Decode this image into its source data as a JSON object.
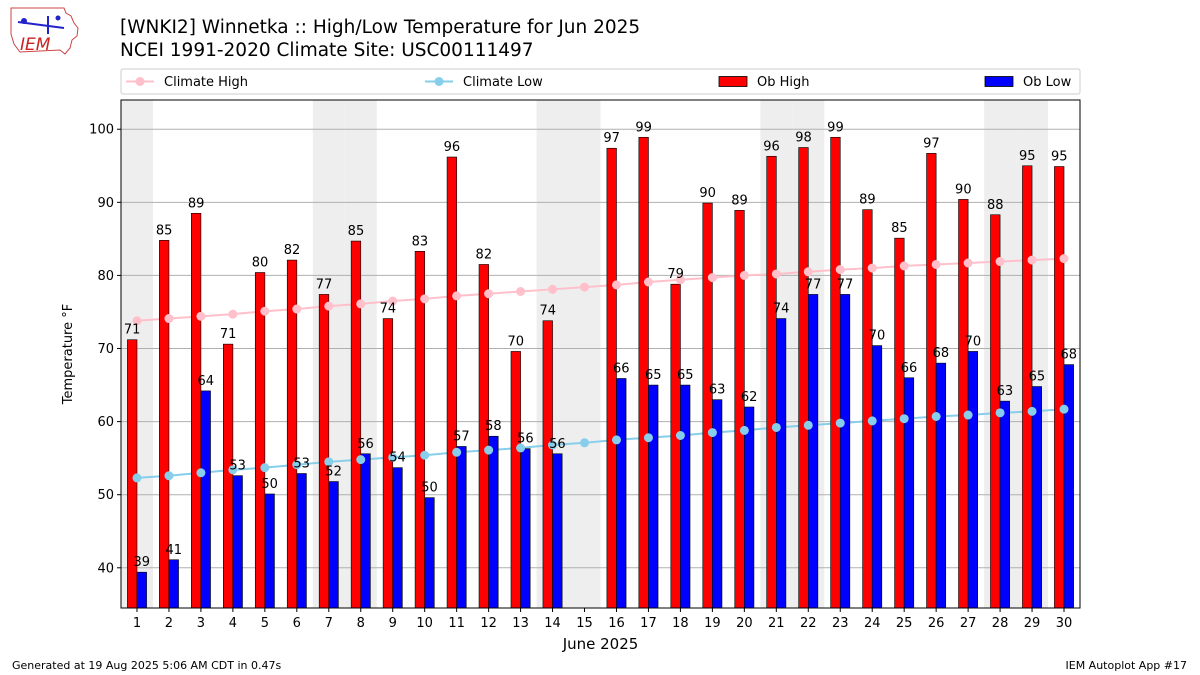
{
  "header": {
    "title_line1": "[WNKI2] Winnetka :: High/Low Temperature for Jun 2025",
    "title_line2": "NCEI 1991-2020 Climate Site: USC00111497",
    "logo_text": "IEM"
  },
  "footer": {
    "generated": "Generated at 19 Aug 2025 5:06 AM CDT in 0.47s",
    "app": "IEM Autoplot App #17"
  },
  "colors": {
    "ob_high": "#ff0000",
    "ob_low": "#0000ff",
    "climate_high": "#ffc0cb",
    "climate_low": "#87ceeb",
    "weekend_shade": "#eeeeee",
    "grid": "#b0b0b0"
  },
  "chart_data": {
    "type": "bar",
    "xlabel": "June 2025",
    "ylabel": "Temperature °F",
    "ylim": [
      34.5,
      104
    ],
    "yticks": [
      40,
      50,
      60,
      70,
      80,
      90,
      100
    ],
    "grid": "horizontal",
    "legend_placement": "top",
    "legend": [
      "Climate High",
      "Climate Low",
      "Ob High",
      "Ob Low"
    ],
    "categories": [
      "1",
      "2",
      "3",
      "4",
      "5",
      "6",
      "7",
      "8",
      "9",
      "10",
      "11",
      "12",
      "13",
      "14",
      "15",
      "16",
      "17",
      "18",
      "19",
      "20",
      "21",
      "22",
      "23",
      "24",
      "25",
      "26",
      "27",
      "28",
      "29",
      "30"
    ],
    "shaded_days": [
      1,
      7,
      8,
      14,
      15,
      21,
      22,
      28,
      29
    ],
    "series": [
      {
        "name": "Ob High",
        "style": "bar",
        "values": [
          71.2,
          84.8,
          88.5,
          70.6,
          80.4,
          82.1,
          77.4,
          84.7,
          74.1,
          83.3,
          96.2,
          81.5,
          69.6,
          73.8,
          null,
          97.4,
          98.9,
          78.8,
          89.9,
          88.9,
          96.3,
          97.5,
          98.9,
          89.0,
          85.1,
          96.7,
          90.4,
          88.3,
          95.0,
          94.9
        ],
        "labels": [
          "71",
          "85",
          "89",
          "71",
          "80",
          "82",
          "77",
          "85",
          "74",
          "83",
          "96",
          "82",
          "70",
          "74",
          "",
          "97",
          "99",
          "79",
          "90",
          "89",
          "96",
          "98",
          "99",
          "89",
          "85",
          "97",
          "90",
          "88",
          "95",
          "95"
        ]
      },
      {
        "name": "Ob Low",
        "style": "bar",
        "values": [
          39.4,
          41.1,
          64.2,
          52.6,
          50.1,
          52.9,
          51.8,
          55.6,
          53.7,
          49.6,
          56.6,
          58.0,
          56.3,
          55.6,
          null,
          65.9,
          65.0,
          65.0,
          63.0,
          62.0,
          74.1,
          77.4,
          77.4,
          70.4,
          66.0,
          68.0,
          69.6,
          62.8,
          64.8,
          67.8
        ],
        "labels": [
          "39",
          "41",
          "64",
          "53",
          "50",
          "53",
          "52",
          "56",
          "54",
          "50",
          "57",
          "58",
          "56",
          "56",
          "",
          "66",
          "65",
          "65",
          "63",
          "62",
          "74",
          "77",
          "77",
          "70",
          "66",
          "68",
          "70",
          "63",
          "65",
          "68"
        ]
      },
      {
        "name": "Climate High",
        "style": "line",
        "values": [
          73.8,
          74.1,
          74.4,
          74.7,
          75.1,
          75.4,
          75.8,
          76.1,
          76.5,
          76.8,
          77.2,
          77.5,
          77.8,
          78.1,
          78.4,
          78.7,
          79.1,
          79.4,
          79.7,
          80.0,
          80.2,
          80.5,
          80.8,
          81.0,
          81.3,
          81.5,
          81.7,
          81.9,
          82.1,
          82.3
        ]
      },
      {
        "name": "Climate Low",
        "style": "line",
        "values": [
          52.3,
          52.6,
          53.0,
          53.4,
          53.7,
          54.1,
          54.5,
          54.8,
          55.1,
          55.4,
          55.8,
          56.1,
          56.4,
          56.8,
          57.1,
          57.5,
          57.8,
          58.1,
          58.5,
          58.8,
          59.2,
          59.5,
          59.8,
          60.1,
          60.4,
          60.7,
          60.9,
          61.2,
          61.4,
          61.7
        ]
      }
    ]
  }
}
